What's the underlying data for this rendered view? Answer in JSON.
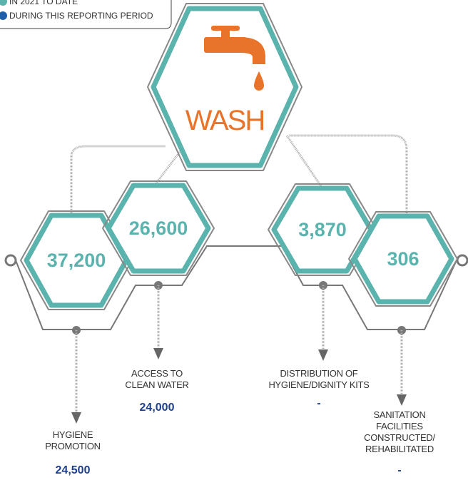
{
  "legend": [
    "IN 2021 TO DATE",
    "DURING THIS REPORTING PERIOD"
  ],
  "title": "WASH",
  "nodes": [
    {
      "value": "37,200",
      "label": [
        "HYGIENE",
        "PROMOTION"
      ],
      "reporting": "24,500"
    },
    {
      "value": "26,600",
      "label": [
        "ACCESS TO",
        "CLEAN WATER"
      ],
      "reporting": "24,000"
    },
    {
      "value": "3,870",
      "label": [
        "DISTRIBUTION OF",
        "HYGIENE/DIGNITY KITS"
      ],
      "reporting": "-"
    },
    {
      "value": "306",
      "label": [
        "SANITATION",
        "FACILITIES",
        "CONSTRUCTED/",
        "REHABILITATED"
      ],
      "reporting": "-"
    }
  ]
}
